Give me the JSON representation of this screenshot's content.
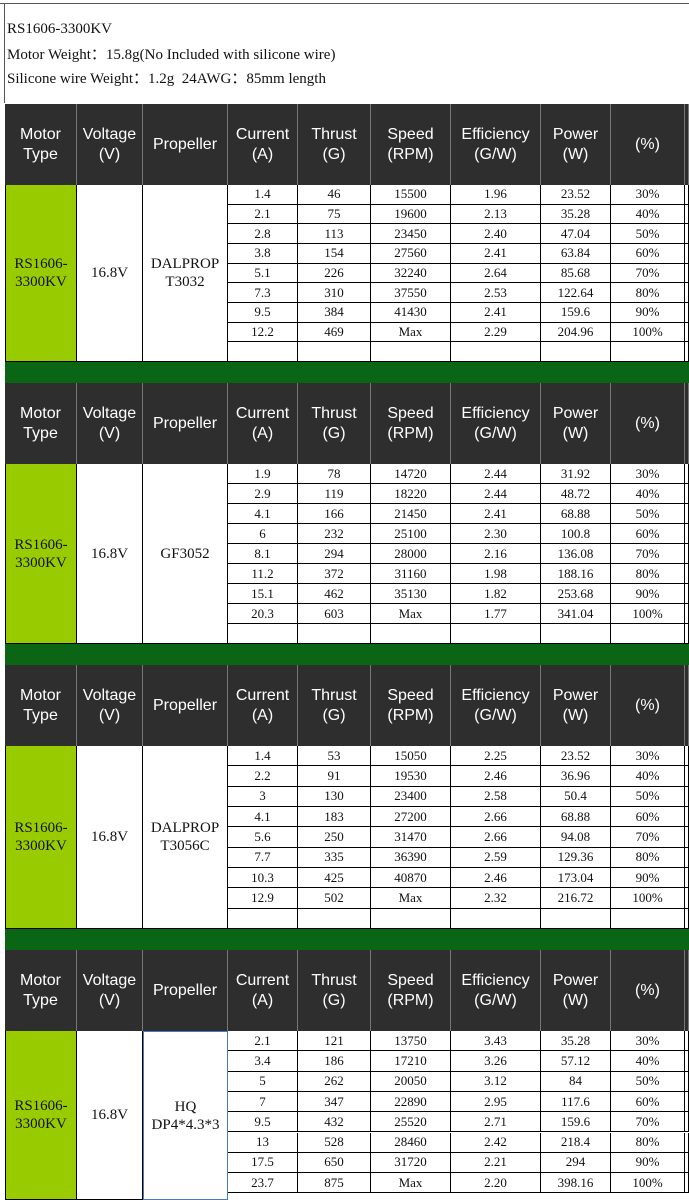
{
  "header": {
    "lines": [
      "RS1606-3300KV",
      "Motor Weight：15.8g(No Included with silicone wire)",
      "Silicone wire Weight：1.2g  24AWG：85mm length"
    ]
  },
  "columns": [
    "Motor Type",
    "Voltage (V)",
    "Propeller",
    "Current (A)",
    "Thrust (G)",
    "Speed (RPM)",
    "Efficiency (G/W)",
    "Power (W)",
    "(%)"
  ],
  "tables": [
    {
      "motor": "RS1606-3300KV",
      "voltage": "16.8V",
      "propeller": "DALPROP T3032",
      "rows": [
        [
          "1.4",
          "46",
          "15500",
          "1.96",
          "23.52",
          "30%"
        ],
        [
          "2.1",
          "75",
          "19600",
          "2.13",
          "35.28",
          "40%"
        ],
        [
          "2.8",
          "113",
          "23450",
          "2.40",
          "47.04",
          "50%"
        ],
        [
          "3.8",
          "154",
          "27560",
          "2.41",
          "63.84",
          "60%"
        ],
        [
          "5.1",
          "226",
          "32240",
          "2.64",
          "85.68",
          "70%"
        ],
        [
          "7.3",
          "310",
          "37550",
          "2.53",
          "122.64",
          "80%"
        ],
        [
          "9.5",
          "384",
          "41430",
          "2.41",
          "159.6",
          "90%"
        ],
        [
          "12.2",
          "469",
          "Max",
          "2.29",
          "204.96",
          "100%"
        ]
      ]
    },
    {
      "motor": "RS1606-3300KV",
      "voltage": "16.8V",
      "propeller": "GF3052",
      "rows": [
        [
          "1.9",
          "78",
          "14720",
          "2.44",
          "31.92",
          "30%"
        ],
        [
          "2.9",
          "119",
          "18220",
          "2.44",
          "48.72",
          "40%"
        ],
        [
          "4.1",
          "166",
          "21450",
          "2.41",
          "68.88",
          "50%"
        ],
        [
          "6",
          "232",
          "25100",
          "2.30",
          "100.8",
          "60%"
        ],
        [
          "8.1",
          "294",
          "28000",
          "2.16",
          "136.08",
          "70%"
        ],
        [
          "11.2",
          "372",
          "31160",
          "1.98",
          "188.16",
          "80%"
        ],
        [
          "15.1",
          "462",
          "35130",
          "1.82",
          "253.68",
          "90%"
        ],
        [
          "20.3",
          "603",
          "Max",
          "1.77",
          "341.04",
          "100%"
        ]
      ]
    },
    {
      "motor": "RS1606-3300KV",
      "voltage": "16.8V",
      "propeller": "DALPROP T3056C",
      "rows": [
        [
          "1.4",
          "53",
          "15050",
          "2.25",
          "23.52",
          "30%"
        ],
        [
          "2.2",
          "91",
          "19530",
          "2.46",
          "36.96",
          "40%"
        ],
        [
          "3",
          "130",
          "23400",
          "2.58",
          "50.4",
          "50%"
        ],
        [
          "4.1",
          "183",
          "27200",
          "2.66",
          "68.88",
          "60%"
        ],
        [
          "5.6",
          "250",
          "31470",
          "2.66",
          "94.08",
          "70%"
        ],
        [
          "7.7",
          "335",
          "36390",
          "2.59",
          "129.36",
          "80%"
        ],
        [
          "10.3",
          "425",
          "40870",
          "2.46",
          "173.04",
          "90%"
        ],
        [
          "12.9",
          "502",
          "Max",
          "2.32",
          "216.72",
          "100%"
        ]
      ]
    },
    {
      "motor": "RS1606-3300KV",
      "voltage": "16.8V",
      "propeller": "HQ DP4*4.3*3",
      "rows": [
        [
          "2.1",
          "121",
          "13750",
          "3.43",
          "35.28",
          "30%"
        ],
        [
          "3.4",
          "186",
          "17210",
          "3.26",
          "57.12",
          "40%"
        ],
        [
          "5",
          "262",
          "20050",
          "3.12",
          "84",
          "50%"
        ],
        [
          "7",
          "347",
          "22890",
          "2.95",
          "117.6",
          "60%"
        ],
        [
          "9.5",
          "432",
          "25520",
          "2.71",
          "159.6",
          "70%"
        ],
        [
          "13",
          "528",
          "28460",
          "2.42",
          "218.4",
          "80%"
        ],
        [
          "17.5",
          "650",
          "31720",
          "2.21",
          "294",
          "90%"
        ],
        [
          "23.7",
          "875",
          "Max",
          "2.20",
          "398.16",
          "100%"
        ]
      ]
    }
  ]
}
